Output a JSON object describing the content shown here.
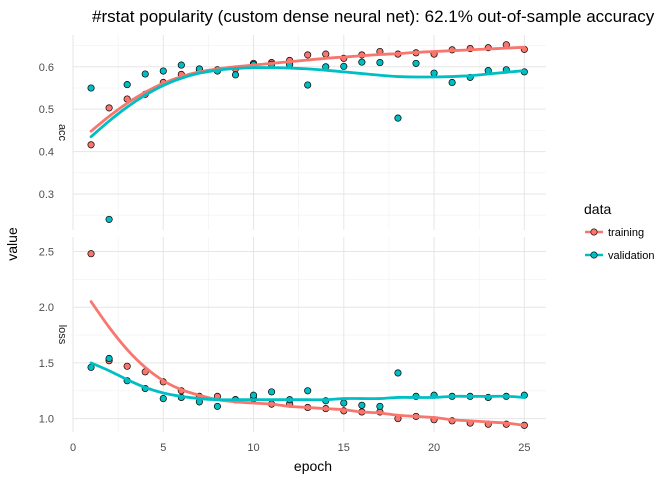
{
  "chart_data": {
    "type": "scatter",
    "title": "#rstat popularity (custom dense neural net): 62.1% out-of-sample accuracy",
    "xlabel": "epoch",
    "ylabel": "value",
    "x_ticks": [
      0,
      5,
      10,
      15,
      20,
      25
    ],
    "xlim": [
      0,
      26.2
    ],
    "grid": true,
    "legend": {
      "title": "data",
      "position": "right",
      "entries": [
        "training",
        "validation"
      ]
    },
    "colors": {
      "training": "#F8766D",
      "validation": "#00BFC4"
    },
    "epochs": [
      1,
      2,
      3,
      4,
      5,
      6,
      7,
      8,
      9,
      10,
      11,
      12,
      13,
      14,
      15,
      16,
      17,
      18,
      19,
      20,
      21,
      22,
      23,
      24,
      25
    ],
    "panels": [
      {
        "strip": "acc",
        "ylim": [
          0.215,
          0.675
        ],
        "y_ticks": [
          0.3,
          0.4,
          0.5,
          0.6
        ],
        "y_tick_labels": [
          "0.3",
          "0.4",
          "0.5",
          "0.6"
        ],
        "series": [
          {
            "name": "training",
            "points": [
              0.416,
              0.503,
              0.524,
              0.535,
              0.563,
              0.582,
              0.593,
              0.593,
              0.595,
              0.608,
              0.61,
              0.615,
              0.628,
              0.63,
              0.62,
              0.628,
              0.636,
              0.63,
              0.633,
              0.63,
              0.64,
              0.643,
              0.645,
              0.652,
              0.641
            ],
            "smooth": [
              0.448,
              0.483,
              0.514,
              0.54,
              0.561,
              0.577,
              0.588,
              0.595,
              0.6,
              0.604,
              0.608,
              0.612,
              0.616,
              0.62,
              0.623,
              0.626,
              0.629,
              0.631,
              0.634,
              0.636,
              0.638,
              0.64,
              0.642,
              0.644,
              0.646
            ]
          },
          {
            "name": "validation",
            "points": [
              0.55,
              0.24,
              0.558,
              0.583,
              0.59,
              0.604,
              0.595,
              0.59,
              0.581,
              0.605,
              0.606,
              0.605,
              0.557,
              0.6,
              0.601,
              0.611,
              0.61,
              0.479,
              0.608,
              0.585,
              0.563,
              0.575,
              0.591,
              0.593,
              0.588
            ],
            "smooth": [
              0.435,
              0.472,
              0.505,
              0.533,
              0.556,
              0.573,
              0.585,
              0.592,
              0.596,
              0.598,
              0.598,
              0.597,
              0.595,
              0.592,
              0.588,
              0.584,
              0.58,
              0.577,
              0.576,
              0.576,
              0.577,
              0.579,
              0.583,
              0.587,
              0.591
            ]
          }
        ]
      },
      {
        "strip": "loss",
        "ylim": [
          0.88,
          2.63
        ],
        "y_ticks": [
          1.0,
          1.5,
          2.0,
          2.5
        ],
        "y_tick_labels": [
          "1.0",
          "1.5",
          "2.0",
          "2.5"
        ],
        "series": [
          {
            "name": "training",
            "points": [
              2.48,
              1.52,
              1.47,
              1.42,
              1.33,
              1.25,
              1.2,
              1.2,
              1.17,
              1.18,
              1.13,
              1.13,
              1.1,
              1.09,
              1.07,
              1.06,
              1.06,
              1.0,
              1.02,
              0.99,
              0.98,
              0.96,
              0.95,
              0.95,
              0.94
            ],
            "smooth": [
              2.05,
              1.82,
              1.62,
              1.46,
              1.34,
              1.26,
              1.21,
              1.17,
              1.15,
              1.14,
              1.13,
              1.11,
              1.1,
              1.09,
              1.08,
              1.06,
              1.05,
              1.03,
              1.02,
              1.01,
              0.99,
              0.98,
              0.97,
              0.96,
              0.94
            ]
          },
          {
            "name": "validation",
            "points": [
              1.46,
              1.54,
              1.34,
              1.27,
              1.18,
              1.19,
              1.15,
              1.11,
              1.17,
              1.21,
              1.24,
              1.17,
              1.25,
              1.16,
              1.14,
              1.12,
              1.11,
              1.41,
              1.2,
              1.21,
              1.2,
              1.2,
              1.19,
              1.2,
              1.21
            ],
            "smooth": [
              1.5,
              1.43,
              1.35,
              1.28,
              1.23,
              1.2,
              1.18,
              1.17,
              1.17,
              1.17,
              1.17,
              1.17,
              1.17,
              1.17,
              1.18,
              1.18,
              1.18,
              1.19,
              1.19,
              1.19,
              1.2,
              1.2,
              1.2,
              1.2,
              1.19
            ]
          }
        ]
      }
    ]
  }
}
